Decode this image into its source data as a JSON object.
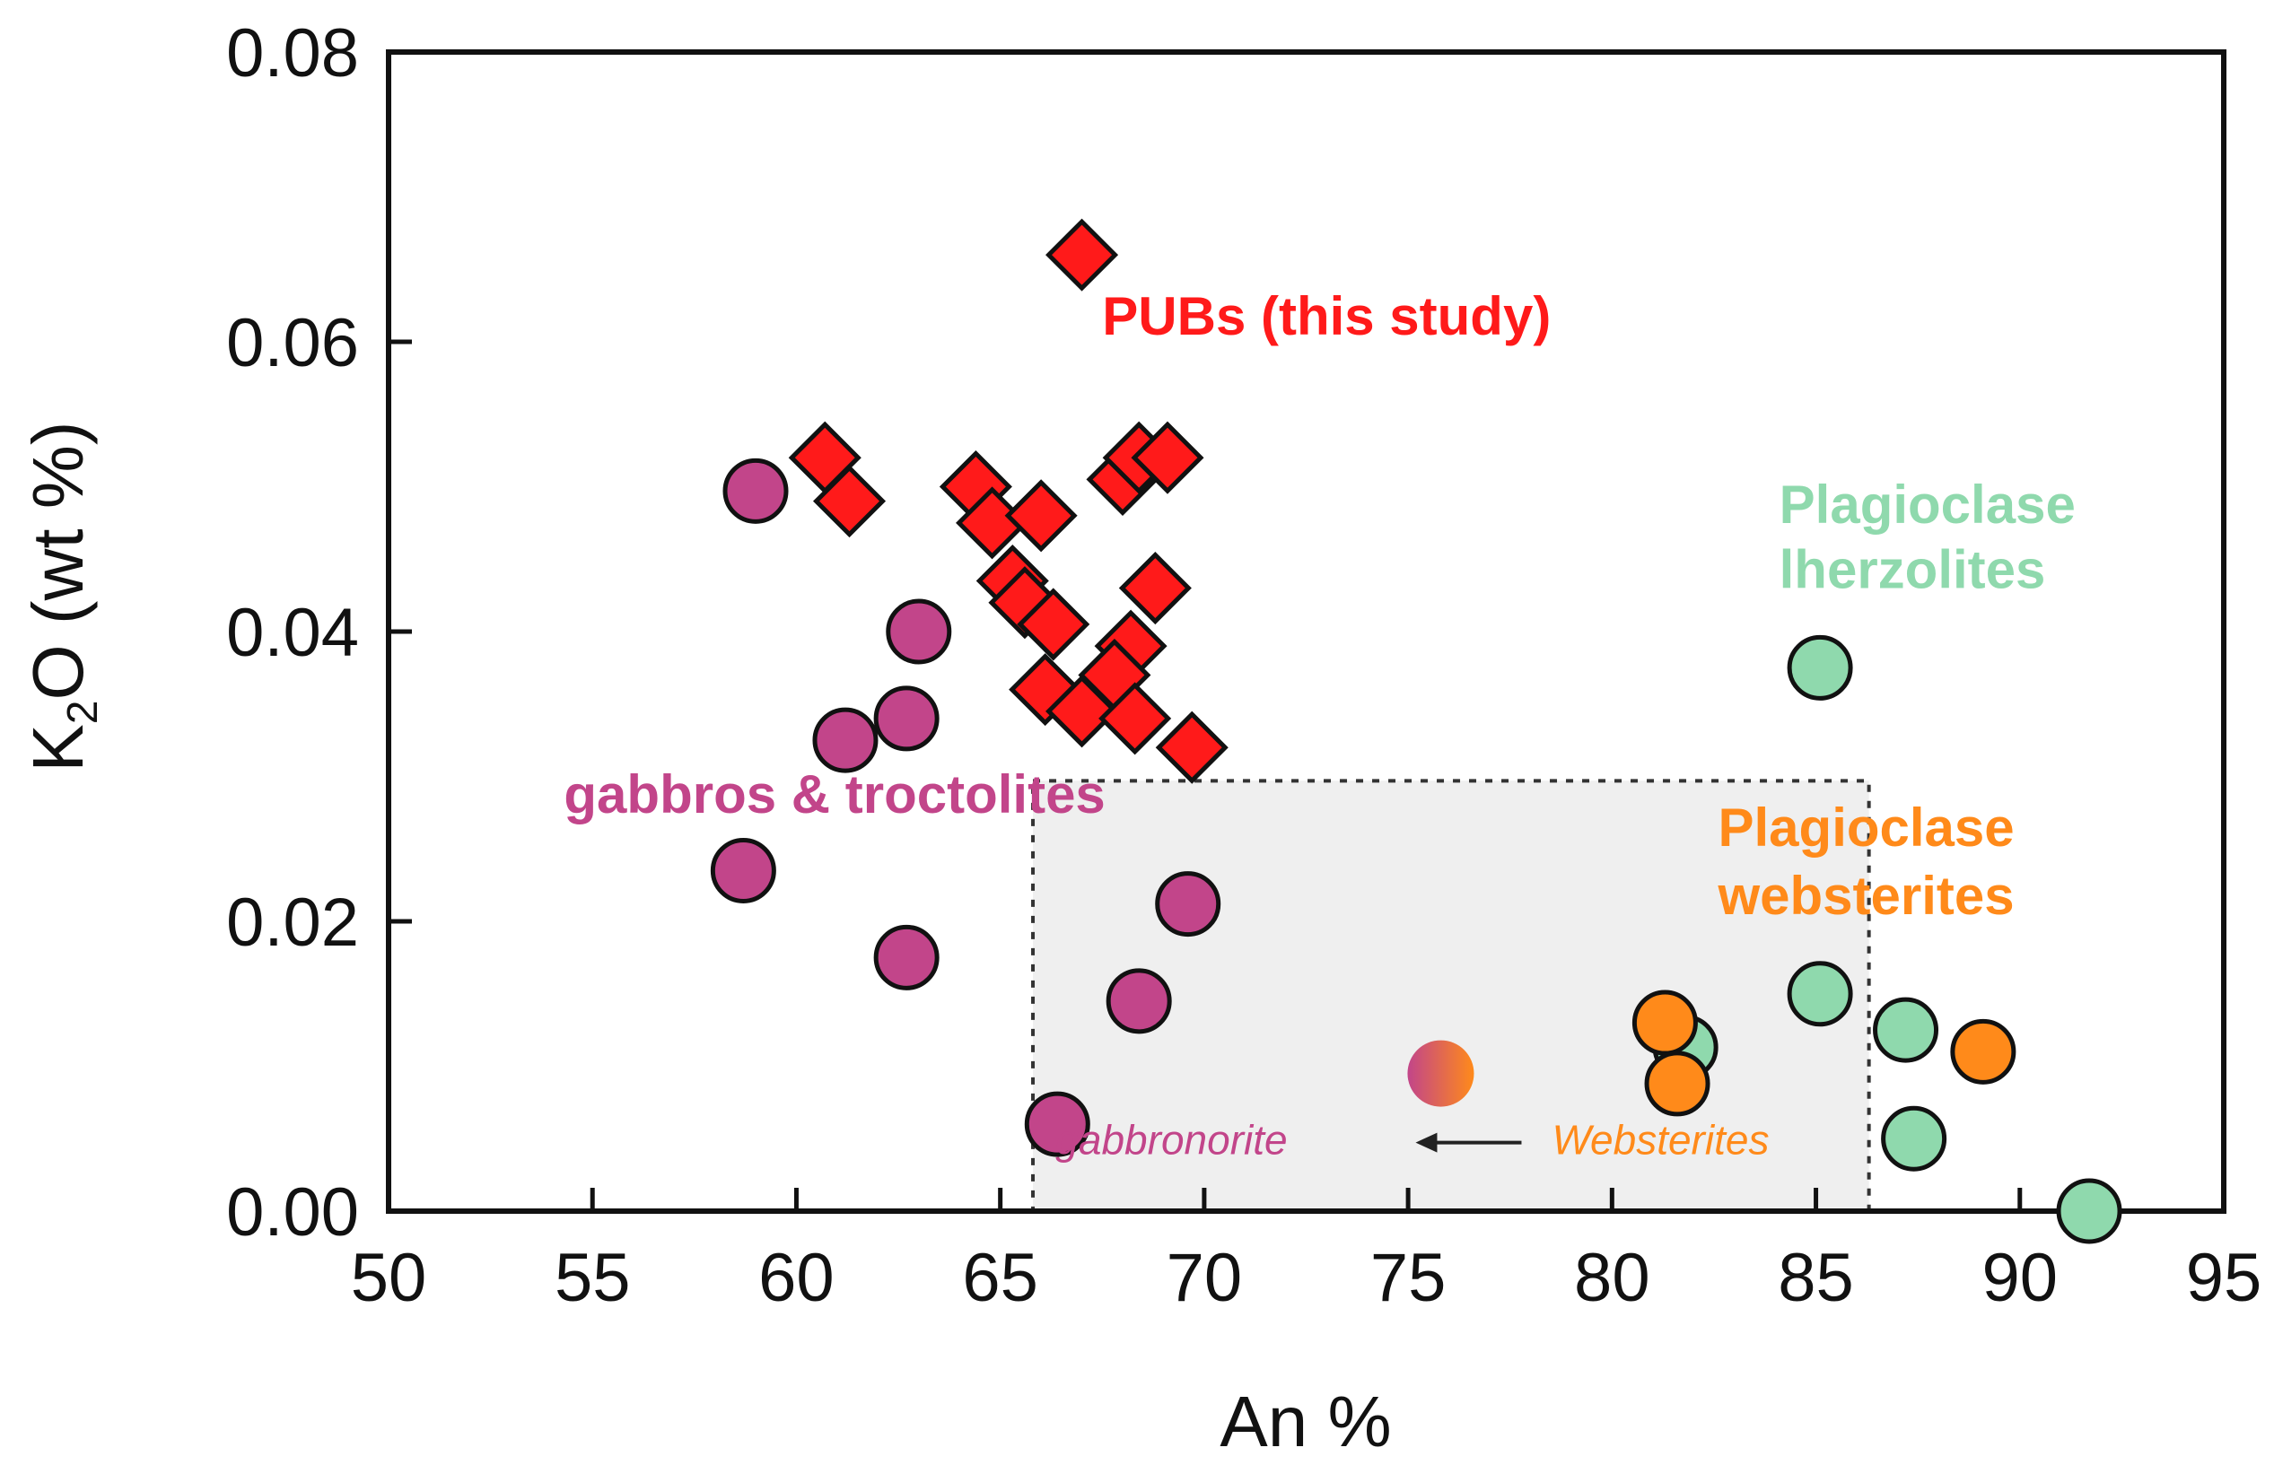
{
  "chart_data": {
    "type": "scatter",
    "xlabel": "An %",
    "ylabel": "K",
    "ylabel_sub": "2",
    "ylabel_rest": "O (wt %)",
    "xlim": [
      50,
      95
    ],
    "ylim": [
      0,
      0.08
    ],
    "xticks": [
      50,
      55,
      60,
      65,
      70,
      75,
      80,
      85,
      90,
      95
    ],
    "yticks": [
      "0.00",
      "0.02",
      "0.04",
      "0.06",
      "0.08"
    ],
    "grid": false,
    "colors": {
      "pubs": "#ff1a1a",
      "gabbros": "#c2458a",
      "lherzolites": "#8fd9ad",
      "websterites": "#ff8a1a",
      "box_fill": "#efefef"
    },
    "series": [
      {
        "name": "PUBs (this study)",
        "marker": "diamond",
        "color": "#ff1a1a",
        "points": [
          [
            67.0,
            0.066
          ],
          [
            60.7,
            0.052
          ],
          [
            61.3,
            0.049
          ],
          [
            64.4,
            0.05
          ],
          [
            64.8,
            0.0475
          ],
          [
            66.0,
            0.048
          ],
          [
            68.0,
            0.0505
          ],
          [
            68.4,
            0.052
          ],
          [
            69.1,
            0.052
          ],
          [
            68.8,
            0.043
          ],
          [
            65.3,
            0.0435
          ],
          [
            65.6,
            0.042
          ],
          [
            66.3,
            0.0405
          ],
          [
            68.2,
            0.039
          ],
          [
            67.8,
            0.037
          ],
          [
            66.1,
            0.036
          ],
          [
            67.0,
            0.0345
          ],
          [
            68.3,
            0.034
          ],
          [
            69.7,
            0.032
          ]
        ]
      },
      {
        "name": "gabbros & troctolites",
        "marker": "circle",
        "color": "#c2458a",
        "points": [
          [
            59.0,
            0.0497
          ],
          [
            63.0,
            0.04
          ],
          [
            61.2,
            0.0325
          ],
          [
            62.7,
            0.034
          ],
          [
            58.7,
            0.0235
          ],
          [
            62.7,
            0.0175
          ],
          [
            69.6,
            0.0212
          ],
          [
            68.4,
            0.0145
          ],
          [
            66.4,
            0.006
          ]
        ]
      },
      {
        "name": "Plagioclase lherzolites",
        "marker": "circle",
        "color": "#8fd9ad",
        "points": [
          [
            85.1,
            0.0375
          ],
          [
            85.1,
            0.015
          ],
          [
            87.2,
            0.0125
          ],
          [
            87.4,
            0.005
          ],
          [
            91.7,
            0.0
          ],
          [
            81.8,
            0.0113
          ]
        ]
      },
      {
        "name": "Plagioclase websterites",
        "marker": "circle",
        "color": "#ff8a1a",
        "points": [
          [
            81.3,
            0.013
          ],
          [
            81.6,
            0.0088
          ],
          [
            89.1,
            0.011
          ]
        ]
      }
    ],
    "special_point": {
      "label_left": "gabbronorite",
      "label_right": "Websterites",
      "x": 75.8,
      "y": 0.0095
    },
    "shaded_box": {
      "x": [
        65.8,
        86.3
      ],
      "y": [
        0.0,
        0.0297
      ]
    },
    "annotations": [
      {
        "text": "PUBs (this study)",
        "color": "#ff1a1a",
        "x": 67.5,
        "y": 0.0605
      },
      {
        "text": "Plagioclase",
        "color": "#8fd9ad",
        "x": 84.1,
        "y": 0.0475
      },
      {
        "text": "lherzolites",
        "color": "#8fd9ad",
        "x": 84.1,
        "y": 0.043
      },
      {
        "text": "gabbros & troctolites",
        "color": "#c2458a",
        "x": 54.3,
        "y": 0.0275
      },
      {
        "text": "Plagioclase",
        "color": "#ff8a1a",
        "x": 82.6,
        "y": 0.0252
      },
      {
        "text": "websterites",
        "color": "#ff8a1a",
        "x": 82.6,
        "y": 0.0205
      }
    ]
  }
}
